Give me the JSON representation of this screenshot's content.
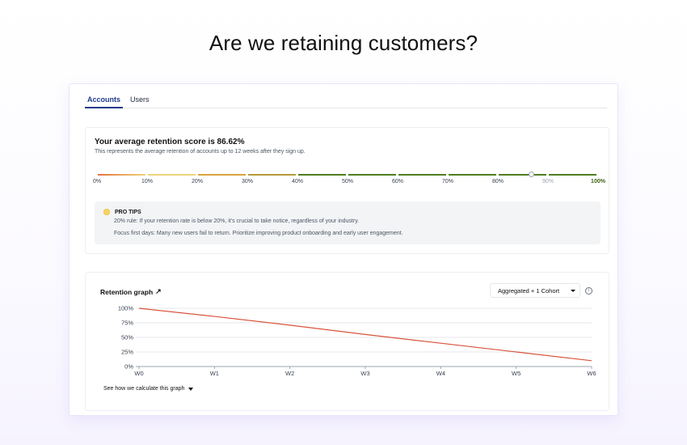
{
  "page": {
    "heading": "Are we retaining customers?"
  },
  "tabs": [
    {
      "label": "Accounts",
      "active": true
    },
    {
      "label": "Users",
      "active": false
    }
  ],
  "score": {
    "title": "Your average retention score is 86.62%",
    "subtitle": "This represents the average retention of accounts up to 12 weeks after they sign up.",
    "value_percent": 86.62,
    "ticks": [
      "0%",
      "10%",
      "20%",
      "30%",
      "40%",
      "50%",
      "60%",
      "70%",
      "80%",
      "90%",
      "100%"
    ],
    "segment_colors": [
      "#e3733f",
      "#eed37a",
      "#d9a43a",
      "#b79a3a",
      "#4f7d1e",
      "#4f7d1e",
      "#4f7d1e",
      "#4f7d1e",
      "#4f7d1e",
      "#4f7d1e",
      "#4f7d1e"
    ]
  },
  "tips": {
    "title": "PRO TIPS",
    "icon": "lightbulb-icon",
    "items": [
      "20% rule: If your retention rate is below 20%, it's crucial to take notice, regardless of your industry.",
      "Focus first days: Many new users fail to return. Prioritize improving product onboarding and early user engagement."
    ]
  },
  "graph": {
    "title": "Retention graph",
    "title_icon": "arrow-up-right-icon",
    "dropdown_value": "Aggregated + 1 Cohort",
    "info_icon": "info-icon",
    "footer_link": "See how we calculate this graph",
    "line_color": "#d9533b"
  },
  "chart_data": {
    "type": "line",
    "x": [
      "W0",
      "W1",
      "W2",
      "W3",
      "W4",
      "W5",
      "W6"
    ],
    "y_ticks": [
      "100%",
      "75%",
      "50%",
      "25%",
      "0%"
    ],
    "ylim": [
      0,
      100
    ],
    "series": [
      {
        "values": [
          100,
          86,
          71,
          55,
          40,
          25,
          10
        ]
      }
    ],
    "grid": true
  }
}
